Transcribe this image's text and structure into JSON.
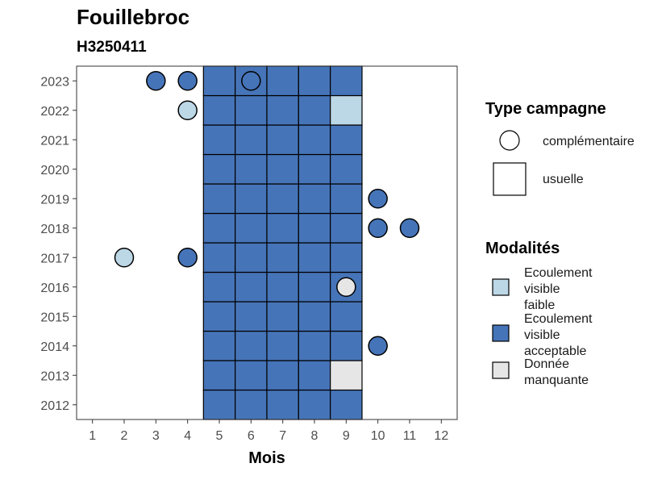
{
  "chart_data": {
    "type": "heatmap",
    "title": "Fouillebroc",
    "subtitle": "H3250411",
    "xlabel": "Mois",
    "ylabel": "",
    "x_ticks": [
      "1",
      "2",
      "3",
      "4",
      "5",
      "6",
      "7",
      "8",
      "9",
      "10",
      "11",
      "12"
    ],
    "y_ticks": [
      "2012",
      "2013",
      "2014",
      "2015",
      "2016",
      "2017",
      "2018",
      "2019",
      "2020",
      "2021",
      "2022",
      "2023"
    ],
    "xlim": [
      0.5,
      12.5
    ],
    "ylim": [
      2011.5,
      2023.5
    ],
    "grid": false,
    "legend_shape": {
      "title": "Type campagne",
      "items": [
        {
          "label": "complémentaire",
          "shape": "circle"
        },
        {
          "label": "usuelle",
          "shape": "square"
        }
      ]
    },
    "legend_modalites": {
      "title": "Modalités",
      "items": [
        {
          "key": "faible",
          "label_lines": [
            "Ecoulement",
            "visible",
            "faible"
          ],
          "color": "#bcd7e6"
        },
        {
          "key": "acceptable",
          "label_lines": [
            "Ecoulement",
            "visible",
            "acceptable"
          ],
          "color": "#4674b8"
        },
        {
          "key": "manquante",
          "label_lines": [
            "Donnée",
            "manquante"
          ],
          "color": "#e6e6e6"
        }
      ]
    },
    "colors": {
      "faible": "#bcd7e6",
      "acceptable": "#4674b8",
      "manquante": "#e6e6e6"
    },
    "usuelle": [
      {
        "year": 2012,
        "months": [
          5,
          6,
          7,
          8,
          9
        ],
        "modalite": "acceptable"
      },
      {
        "year": 2013,
        "months": [
          5,
          6,
          7,
          8
        ],
        "modalite": "acceptable"
      },
      {
        "year": 2013,
        "months": [
          9
        ],
        "modalite": "manquante"
      },
      {
        "year": 2014,
        "months": [
          5,
          6,
          7,
          8,
          9
        ],
        "modalite": "acceptable"
      },
      {
        "year": 2015,
        "months": [
          5,
          6,
          7,
          8,
          9
        ],
        "modalite": "acceptable"
      },
      {
        "year": 2016,
        "months": [
          5,
          6,
          7,
          8,
          9
        ],
        "modalite": "acceptable"
      },
      {
        "year": 2017,
        "months": [
          5,
          6,
          7,
          8,
          9
        ],
        "modalite": "acceptable"
      },
      {
        "year": 2018,
        "months": [
          5,
          6,
          7,
          8,
          9
        ],
        "modalite": "acceptable"
      },
      {
        "year": 2019,
        "months": [
          5,
          6,
          7,
          8,
          9
        ],
        "modalite": "acceptable"
      },
      {
        "year": 2020,
        "months": [
          5,
          6,
          7,
          8,
          9
        ],
        "modalite": "acceptable"
      },
      {
        "year": 2021,
        "months": [
          5,
          6,
          7,
          8,
          9
        ],
        "modalite": "acceptable"
      },
      {
        "year": 2022,
        "months": [
          5,
          6,
          7,
          8
        ],
        "modalite": "acceptable"
      },
      {
        "year": 2022,
        "months": [
          9
        ],
        "modalite": "faible"
      },
      {
        "year": 2023,
        "months": [
          5,
          6,
          7,
          8,
          9
        ],
        "modalite": "acceptable"
      }
    ],
    "complementaire": [
      {
        "year": 2023,
        "month": 3,
        "modalite": "acceptable"
      },
      {
        "year": 2023,
        "month": 4,
        "modalite": "acceptable"
      },
      {
        "year": 2023,
        "month": 6,
        "modalite": "acceptable"
      },
      {
        "year": 2022,
        "month": 4,
        "modalite": "faible"
      },
      {
        "year": 2019,
        "month": 10,
        "modalite": "acceptable"
      },
      {
        "year": 2018,
        "month": 10,
        "modalite": "acceptable"
      },
      {
        "year": 2018,
        "month": 11,
        "modalite": "acceptable"
      },
      {
        "year": 2017,
        "month": 2,
        "modalite": "faible"
      },
      {
        "year": 2017,
        "month": 4,
        "modalite": "acceptable"
      },
      {
        "year": 2016,
        "month": 9,
        "modalite": "manquante"
      },
      {
        "year": 2014,
        "month": 10,
        "modalite": "acceptable"
      }
    ]
  }
}
